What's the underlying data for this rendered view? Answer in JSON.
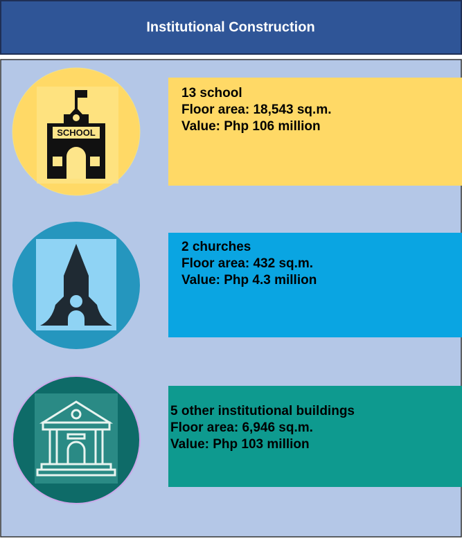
{
  "header": {
    "title": "Institutional Construction"
  },
  "items": [
    {
      "lines": [
        "13 school",
        "Floor area: 18,543 sq.m.",
        "Value: Php 106 million"
      ],
      "icon_label": "SCHOOL"
    },
    {
      "lines": [
        "2 churches",
        "Floor area: 432 sq.m.",
        "Value: Php 4.3 million"
      ]
    },
    {
      "lines": [
        "5 other institutional buildings",
        "Floor area: 6,946 sq.m.",
        "Value: Php 103 million"
      ]
    }
  ]
}
